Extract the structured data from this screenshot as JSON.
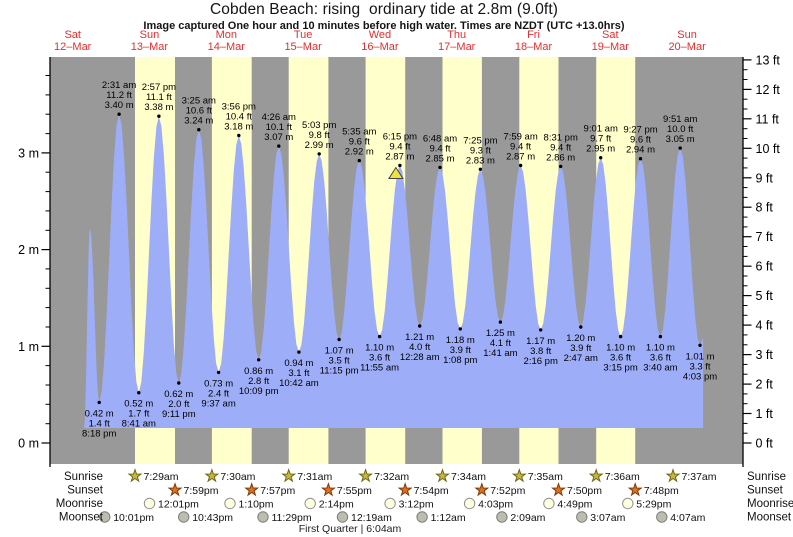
{
  "title": "Cobden Beach: rising  ordinary tide at 2.8m (9.0ft)",
  "subtitle": "Image captured One hour and 10 minutes before high water. Times are NZDT (UTC +13.0hrs)",
  "chart_data": {
    "type": "area",
    "title": "Cobden Beach: rising ordinary tide at 2.8m (9.0ft)",
    "x_axis": {
      "days": [
        {
          "dow": "Sat",
          "date": "12–Mar"
        },
        {
          "dow": "Sun",
          "date": "13–Mar"
        },
        {
          "dow": "Mon",
          "date": "14–Mar"
        },
        {
          "dow": "Tue",
          "date": "15–Mar"
        },
        {
          "dow": "Wed",
          "date": "16–Mar"
        },
        {
          "dow": "Thu",
          "date": "17–Mar"
        },
        {
          "dow": "Fri",
          "date": "18–Mar"
        },
        {
          "dow": "Sat",
          "date": "19–Mar"
        },
        {
          "dow": "Sun",
          "date": "20–Mar"
        }
      ]
    },
    "y_axis_left": {
      "unit": "m",
      "tick_labels": [
        "0 m",
        "1 m",
        "2 m",
        "3 m"
      ],
      "range": [
        0,
        4
      ]
    },
    "y_axis_right": {
      "unit": "ft",
      "tick_labels": [
        "0 ft",
        "1 ft",
        "2 ft",
        "3 ft",
        "4 ft",
        "5 ft",
        "6 ft",
        "7 ft",
        "8 ft",
        "9 ft",
        "10 ft",
        "11 ft",
        "12 ft",
        "13 ft"
      ],
      "range": [
        0,
        13.2
      ]
    },
    "tide_events": [
      {
        "type": "L",
        "day": 0,
        "time": "8:18 pm",
        "h": 20.3,
        "m": 0.42,
        "ft": 1.4
      },
      {
        "type": "H",
        "day": 1,
        "time": "2:31 am",
        "h": 2.5167,
        "m": 3.4,
        "ft": 11.2
      },
      {
        "type": "L",
        "day": 1,
        "time": "8:41 am",
        "h": 8.6833,
        "m": 0.52,
        "ft": 1.7
      },
      {
        "type": "H",
        "day": 1,
        "time": "2:57 pm",
        "h": 14.95,
        "m": 3.38,
        "ft": 11.1
      },
      {
        "type": "L",
        "day": 1,
        "time": "9:11 pm",
        "h": 21.1833,
        "m": 0.62,
        "ft": 2.0
      },
      {
        "type": "H",
        "day": 2,
        "time": "3:25 am",
        "h": 3.4167,
        "m": 3.24,
        "ft": 10.6
      },
      {
        "type": "L",
        "day": 2,
        "time": "9:37 am",
        "h": 9.6167,
        "m": 0.73,
        "ft": 2.4
      },
      {
        "type": "H",
        "day": 2,
        "time": "3:56 pm",
        "h": 15.9333,
        "m": 3.18,
        "ft": 10.4
      },
      {
        "type": "L",
        "day": 2,
        "time": "10:09 pm",
        "h": 22.15,
        "m": 0.86,
        "ft": 2.8
      },
      {
        "type": "H",
        "day": 3,
        "time": "4:26 am",
        "h": 4.4333,
        "m": 3.07,
        "ft": 10.1
      },
      {
        "type": "L",
        "day": 3,
        "time": "10:42 am",
        "h": 10.7,
        "m": 0.94,
        "ft": 3.1
      },
      {
        "type": "H",
        "day": 3,
        "time": "5:03 pm",
        "h": 17.05,
        "m": 2.99,
        "ft": 9.8
      },
      {
        "type": "L",
        "day": 3,
        "time": "11:15 pm",
        "h": 23.25,
        "m": 1.07,
        "ft": 3.5
      },
      {
        "type": "H",
        "day": 4,
        "time": "5:35 am",
        "h": 5.5833,
        "m": 2.92,
        "ft": 9.6
      },
      {
        "type": "L",
        "day": 4,
        "time": "11:55 am",
        "h": 11.9167,
        "m": 1.1,
        "ft": 3.6
      },
      {
        "type": "H",
        "day": 4,
        "time": "6:15 pm",
        "h": 18.25,
        "m": 2.87,
        "ft": 9.4,
        "current": true
      },
      {
        "type": "L",
        "day": 5,
        "time": "12:28 am",
        "h": 0.4667,
        "m": 1.21,
        "ft": 4.0
      },
      {
        "type": "H",
        "day": 5,
        "time": "6:48 am",
        "h": 6.8,
        "m": 2.85,
        "ft": 9.4
      },
      {
        "type": "L",
        "day": 5,
        "time": "1:08 pm",
        "h": 13.1333,
        "m": 1.18,
        "ft": 3.9
      },
      {
        "type": "H",
        "day": 5,
        "time": "7:25 pm",
        "h": 19.4167,
        "m": 2.83,
        "ft": 9.3
      },
      {
        "type": "L",
        "day": 6,
        "time": "1:41 am",
        "h": 1.6833,
        "m": 1.25,
        "ft": 4.1
      },
      {
        "type": "H",
        "day": 6,
        "time": "7:59 am",
        "h": 7.9833,
        "m": 2.87,
        "ft": 9.4
      },
      {
        "type": "L",
        "day": 6,
        "time": "2:16 pm",
        "h": 14.2667,
        "m": 1.17,
        "ft": 3.8
      },
      {
        "type": "H",
        "day": 6,
        "time": "8:31 pm",
        "h": 20.5167,
        "m": 2.86,
        "ft": 9.4
      },
      {
        "type": "L",
        "day": 7,
        "time": "2:47 am",
        "h": 2.7833,
        "m": 1.2,
        "ft": 3.9
      },
      {
        "type": "H",
        "day": 7,
        "time": "9:01 am",
        "h": 9.0167,
        "m": 2.95,
        "ft": 9.7
      },
      {
        "type": "L",
        "day": 7,
        "time": "3:15 pm",
        "h": 15.25,
        "m": 1.1,
        "ft": 3.6
      },
      {
        "type": "H",
        "day": 7,
        "time": "9:27 pm",
        "h": 21.45,
        "m": 2.94,
        "ft": 9.6
      },
      {
        "type": "L",
        "day": 8,
        "time": "3:40 am",
        "h": 3.6667,
        "m": 1.1,
        "ft": 3.6
      },
      {
        "type": "H",
        "day": 8,
        "time": "9:51 am",
        "h": 9.85,
        "m": 3.05,
        "ft": 10.0
      },
      {
        "type": "L",
        "day": 8,
        "time": "4:03 pm",
        "h": 16.05,
        "m": 1.01,
        "ft": 3.3
      }
    ],
    "partial_start": [
      {
        "day": 0,
        "h": 15.55,
        "m": 0.15
      },
      {
        "day": 0,
        "h": 17.42,
        "m": 2.22
      }
    ],
    "curve_end": {
      "day": 8,
      "h": 17.0,
      "m": 1.08
    },
    "astro_labels": [
      "Sunrise",
      "Sunset",
      "Moonrise",
      "Moonset"
    ],
    "astro": {
      "sunrise": [
        {
          "day": 1,
          "time": "7:29am",
          "h": 7.4833
        },
        {
          "day": 2,
          "time": "7:30am",
          "h": 7.5
        },
        {
          "day": 3,
          "time": "7:31am",
          "h": 7.5167
        },
        {
          "day": 4,
          "time": "7:32am",
          "h": 7.5333
        },
        {
          "day": 5,
          "time": "7:34am",
          "h": 7.5667
        },
        {
          "day": 6,
          "time": "7:35am",
          "h": 7.5833
        },
        {
          "day": 7,
          "time": "7:36am",
          "h": 7.6
        },
        {
          "day": 8,
          "time": "7:37am",
          "h": 7.6167
        }
      ],
      "sunset": [
        {
          "day": 1,
          "time": "7:59pm",
          "h": 19.9833
        },
        {
          "day": 2,
          "time": "7:57pm",
          "h": 19.95
        },
        {
          "day": 3,
          "time": "7:55pm",
          "h": 19.9167
        },
        {
          "day": 4,
          "time": "7:54pm",
          "h": 19.9
        },
        {
          "day": 5,
          "time": "7:52pm",
          "h": 19.8667
        },
        {
          "day": 6,
          "time": "7:50pm",
          "h": 19.8333
        },
        {
          "day": 7,
          "time": "7:48pm",
          "h": 19.8
        }
      ],
      "moonrise": [
        {
          "day": 1,
          "time": "12:01pm",
          "h": 12.0167
        },
        {
          "day": 2,
          "time": "1:10pm",
          "h": 13.1667
        },
        {
          "day": 3,
          "time": "2:14pm",
          "h": 14.2333
        },
        {
          "day": 4,
          "time": "3:12pm",
          "h": 15.2
        },
        {
          "day": 5,
          "time": "4:03pm",
          "h": 16.05
        },
        {
          "day": 6,
          "time": "4:49pm",
          "h": 16.8167
        },
        {
          "day": 7,
          "time": "5:29pm",
          "h": 17.4833
        }
      ],
      "moonset": [
        {
          "day": 0,
          "time": "10:01pm",
          "h": 22.0167
        },
        {
          "day": 1,
          "time": "10:43pm",
          "h": 22.7167
        },
        {
          "day": 2,
          "time": "11:29pm",
          "h": 23.4833
        },
        {
          "day": 4,
          "time": "12:19am",
          "h": 0.3167
        },
        {
          "day": 5,
          "time": "1:12am",
          "h": 1.2
        },
        {
          "day": 6,
          "time": "2:09am",
          "h": 2.15
        },
        {
          "day": 7,
          "time": "3:07am",
          "h": 3.1167
        },
        {
          "day": 8,
          "time": "4:07am",
          "h": 4.1167
        }
      ]
    },
    "moon_phase": "First Quarter | 6:04am",
    "colors": {
      "night_gray": "#999999",
      "daylight_yellow": "#FFFFCC",
      "tide_fill": "#9EADF8",
      "day_label_red": "#E03030",
      "sunrise_star": "#C6B83E",
      "sunrise_star_stroke": "#6E6518",
      "sunset_star": "#E0701D",
      "sunset_star_stroke": "#7C3A08",
      "moonrise_circle": "#FFFFE2",
      "moonrise_circle_stroke": "#909090",
      "moonset_circle": "#BCBCB0",
      "moonset_circle_stroke": "#7D7D78",
      "current_marker": "#F0E040"
    }
  }
}
